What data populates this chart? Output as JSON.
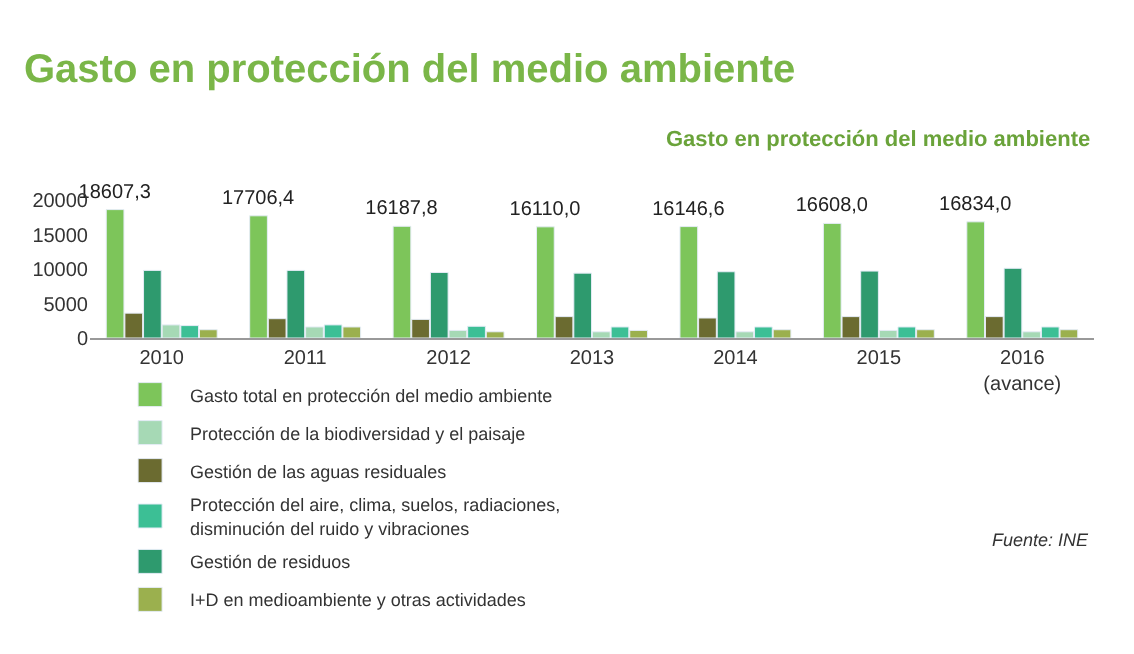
{
  "chart_data": {
    "type": "bar",
    "title": "Gasto en protección del medio ambiente",
    "subtitle": "Gasto en protección del medio ambiente",
    "categories": [
      "2010",
      "2011",
      "2012",
      "2013",
      "2014",
      "2015",
      "2016 (avance)"
    ],
    "series": [
      {
        "name": "Gasto total en protección del medio ambiente",
        "color": "#7dc55a",
        "values": [
          18607.3,
          17706.4,
          16187.8,
          16110.0,
          16146.6,
          16608.0,
          16834.0
        ],
        "value_labels": [
          "18607,3",
          "17706,4",
          "16187,8",
          "16110,0",
          "16146,6",
          "16608,0",
          "16834,0"
        ]
      },
      {
        "name": "Gestión de las aguas residuales",
        "color": "#6b6b30",
        "values": [
          3600,
          2800,
          2700,
          3100,
          2900,
          3100,
          3100
        ]
      },
      {
        "name": "Gestión de residuos",
        "color": "#2e9a6e",
        "values": [
          9800,
          9800,
          9500,
          9400,
          9600,
          9700,
          10100
        ]
      },
      {
        "name": "Protección de la biodiversidad y el paisaje",
        "color": "#a6d9b5",
        "values": [
          1900,
          1600,
          1100,
          900,
          900,
          1100,
          900
        ]
      },
      {
        "name": "Protección del aire, clima, suelos, radiaciones, disminución del ruido y vibraciones",
        "color": "#3cbf95",
        "values": [
          1800,
          1900,
          1700,
          1600,
          1600,
          1600,
          1600
        ]
      },
      {
        "name": "I+D en medioambiente y otras actividades",
        "color": "#9bb04e",
        "values": [
          1200,
          1600,
          900,
          1100,
          1200,
          1200,
          1200
        ]
      }
    ],
    "ylim": [
      0,
      20000
    ],
    "yticks": [
      0,
      5000,
      10000,
      15000,
      20000
    ],
    "grid": false,
    "legend": "bottom",
    "annotations": [
      "Fuente: INE"
    ]
  }
}
